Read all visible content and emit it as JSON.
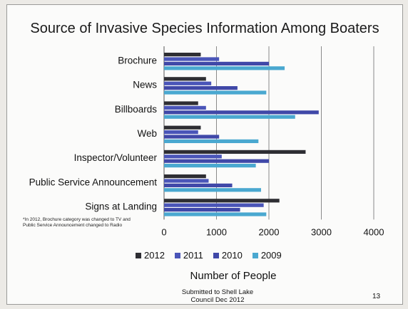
{
  "title": "Source of Invasive Species Information Among Boaters",
  "footnote": "*In 2012, Brochure category was changed to TV and Public Service Announcement changed to Radio",
  "footer": {
    "line1": "Submitted to Shell Lake",
    "line2": "Council Dec 2012"
  },
  "page_number": "13",
  "colors": {
    "2012": "#2e2e33",
    "2011": "#4a55b8",
    "2010": "#4048a8",
    "2009": "#4aa8d0",
    "grid": "#8a8a8a"
  },
  "chart_data": {
    "type": "bar",
    "orientation": "horizontal",
    "title": "Source of Invasive Species Information Among Boaters",
    "xlabel": "Number of People",
    "ylabel": "",
    "xlim": [
      0,
      4000
    ],
    "xticks": [
      "0",
      "1000",
      "2000",
      "3000",
      "4000"
    ],
    "grid": true,
    "legend_position": "bottom",
    "categories": [
      "Brochure",
      "News",
      "Billboards",
      "Web",
      "Inspector/Volunteer",
      "Public Service Announcement",
      "Signs at Landing"
    ],
    "series": [
      {
        "name": "2012",
        "values": [
          700,
          800,
          650,
          700,
          2700,
          800,
          2200
        ]
      },
      {
        "name": "2011",
        "values": [
          1050,
          900,
          800,
          650,
          1100,
          850,
          1900
        ]
      },
      {
        "name": "2010",
        "values": [
          2000,
          1400,
          2950,
          1050,
          2000,
          1300,
          1450
        ]
      },
      {
        "name": "2009",
        "values": [
          2300,
          1950,
          2500,
          1800,
          1750,
          1850,
          1950
        ]
      }
    ]
  }
}
